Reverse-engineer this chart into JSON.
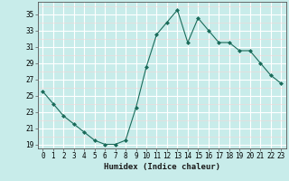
{
  "x": [
    0,
    1,
    2,
    3,
    4,
    5,
    6,
    7,
    8,
    9,
    10,
    11,
    12,
    13,
    14,
    15,
    16,
    17,
    18,
    19,
    20,
    21,
    22,
    23
  ],
  "y": [
    25.5,
    24.0,
    22.5,
    21.5,
    20.5,
    19.5,
    19.0,
    19.0,
    19.5,
    23.5,
    28.5,
    32.5,
    34.0,
    35.5,
    31.5,
    34.5,
    33.0,
    31.5,
    31.5,
    30.5,
    30.5,
    29.0,
    27.5,
    26.5
  ],
  "line_color": "#1a6b5a",
  "marker": "D",
  "marker_size": 2.0,
  "bg_color": "#c8ecea",
  "grid_major_color": "#ffffff",
  "grid_minor_color": "#f5d5d5",
  "xlabel": "Humidex (Indice chaleur)",
  "ylim": [
    18.5,
    36.5
  ],
  "xlim": [
    -0.5,
    23.5
  ],
  "yticks": [
    19,
    21,
    23,
    25,
    27,
    29,
    31,
    33,
    35
  ],
  "xticks": [
    0,
    1,
    2,
    3,
    4,
    5,
    6,
    7,
    8,
    9,
    10,
    11,
    12,
    13,
    14,
    15,
    16,
    17,
    18,
    19,
    20,
    21,
    22,
    23
  ]
}
